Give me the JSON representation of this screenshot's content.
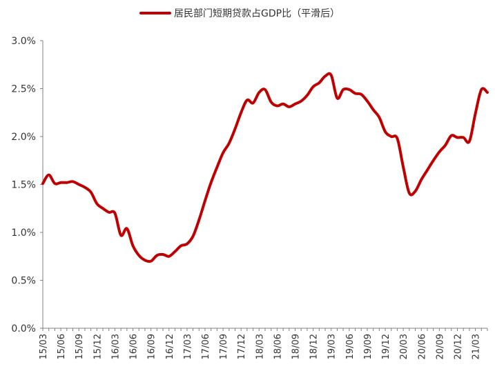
{
  "chart_data": {
    "type": "line",
    "legend": {
      "position": "top-center",
      "label": "居民部门短期贷款占GDP比（平滑后）"
    },
    "series": [
      {
        "name": "居民部门短期贷款占GDP比（平滑后）",
        "color": "#c00000",
        "points": [
          [
            "15/03",
            1.51
          ],
          [
            "15/04",
            1.6
          ],
          [
            "15/05",
            1.51
          ],
          [
            "15/06",
            1.52
          ],
          [
            "15/07",
            1.52
          ],
          [
            "15/08",
            1.53
          ],
          [
            "15/09",
            1.5
          ],
          [
            "15/10",
            1.47
          ],
          [
            "15/11",
            1.42
          ],
          [
            "15/12",
            1.3
          ],
          [
            "16/01",
            1.25
          ],
          [
            "16/02",
            1.21
          ],
          [
            "16/03",
            1.2
          ],
          [
            "16/04",
            0.97
          ],
          [
            "16/05",
            1.04
          ],
          [
            "16/06",
            0.86
          ],
          [
            "16/07",
            0.76
          ],
          [
            "16/08",
            0.71
          ],
          [
            "16/09",
            0.7
          ],
          [
            "16/10",
            0.76
          ],
          [
            "16/11",
            0.77
          ],
          [
            "16/12",
            0.75
          ],
          [
            "17/01",
            0.8
          ],
          [
            "17/02",
            0.86
          ],
          [
            "17/03",
            0.88
          ],
          [
            "17/04",
            0.96
          ],
          [
            "17/05",
            1.13
          ],
          [
            "17/06",
            1.33
          ],
          [
            "17/07",
            1.52
          ],
          [
            "17/08",
            1.68
          ],
          [
            "17/09",
            1.83
          ],
          [
            "17/10",
            1.93
          ],
          [
            "17/11",
            2.08
          ],
          [
            "17/12",
            2.25
          ],
          [
            "18/01",
            2.38
          ],
          [
            "18/02",
            2.35
          ],
          [
            "18/03",
            2.46
          ],
          [
            "18/04",
            2.49
          ],
          [
            "18/05",
            2.36
          ],
          [
            "18/06",
            2.32
          ],
          [
            "18/07",
            2.34
          ],
          [
            "18/08",
            2.31
          ],
          [
            "18/09",
            2.34
          ],
          [
            "18/10",
            2.37
          ],
          [
            "18/11",
            2.43
          ],
          [
            "18/12",
            2.52
          ],
          [
            "19/01",
            2.56
          ],
          [
            "19/02",
            2.63
          ],
          [
            "19/03",
            2.64
          ],
          [
            "19/04",
            2.4
          ],
          [
            "19/05",
            2.49
          ],
          [
            "19/06",
            2.49
          ],
          [
            "19/07",
            2.45
          ],
          [
            "19/08",
            2.44
          ],
          [
            "19/09",
            2.37
          ],
          [
            "19/10",
            2.28
          ],
          [
            "19/11",
            2.2
          ],
          [
            "19/12",
            2.05
          ],
          [
            "20/01",
            2.0
          ],
          [
            "20/02",
            1.98
          ],
          [
            "20/03",
            1.68
          ],
          [
            "20/04",
            1.41
          ],
          [
            "20/05",
            1.43
          ],
          [
            "20/06",
            1.55
          ],
          [
            "20/07",
            1.65
          ],
          [
            "20/08",
            1.75
          ],
          [
            "20/09",
            1.84
          ],
          [
            "20/10",
            1.91
          ],
          [
            "20/11",
            2.01
          ],
          [
            "20/12",
            1.99
          ],
          [
            "21/01",
            1.99
          ],
          [
            "21/02",
            1.95
          ],
          [
            "21/03",
            2.24
          ],
          [
            "21/04",
            2.49
          ],
          [
            "21/05",
            2.46
          ]
        ]
      }
    ],
    "x_tick_labels": [
      "15/03",
      "15/06",
      "15/09",
      "15/12",
      "16/03",
      "16/06",
      "16/09",
      "16/12",
      "17/03",
      "17/06",
      "17/09",
      "17/12",
      "18/03",
      "18/06",
      "18/09",
      "18/12",
      "19/03",
      "19/06",
      "19/09",
      "19/12",
      "20/03",
      "20/06",
      "20/09",
      "20/12",
      "21/03"
    ],
    "y_axis": {
      "min": 0.0,
      "max": 3.0,
      "tick_labels": [
        "0.0%",
        "0.5%",
        "1.0%",
        "1.5%",
        "2.0%",
        "2.5%",
        "3.0%"
      ]
    },
    "grid": false
  }
}
